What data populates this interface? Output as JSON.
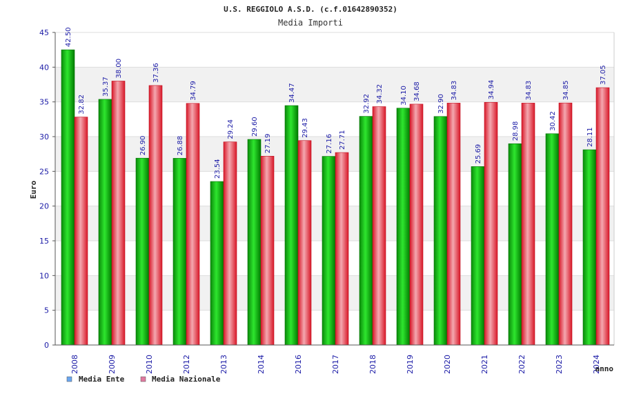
{
  "chart_data": {
    "type": "bar",
    "title": "U.S. REGGIOLO A.S.D. (c.f.01642890352)",
    "subtitle": "Media Importi",
    "xlabel": "anno",
    "ylabel": "Euro",
    "ylim": [
      0,
      45
    ],
    "yticks": [
      "0",
      "5",
      "10",
      "15",
      "20",
      "25",
      "30",
      "35",
      "40",
      "45"
    ],
    "grid": true,
    "legend_position": "bottom-left",
    "categories": [
      "2008",
      "2009",
      "2010",
      "2012",
      "2013",
      "2014",
      "2016",
      "2017",
      "2018",
      "2019",
      "2020",
      "2021",
      "2022",
      "2023",
      "2024"
    ],
    "series": [
      {
        "name": "Media Ente",
        "color": "#00b000",
        "legend_color": "#6aa6f0",
        "values": [
          42.5,
          35.37,
          26.9,
          26.88,
          23.54,
          29.6,
          34.47,
          27.16,
          32.92,
          34.1,
          32.9,
          25.69,
          28.98,
          30.42,
          28.11
        ],
        "labels": [
          "42.50",
          "35.37",
          "26.90",
          "26.88",
          "23.54",
          "29.60",
          "34.47",
          "27.16",
          "32.92",
          "34.10",
          "32.90",
          "25.69",
          "28.98",
          "30.42",
          "28.11"
        ]
      },
      {
        "name": "Media Nazionale",
        "color": "#e8202a",
        "legend_color": "#e07aa0",
        "values": [
          32.82,
          38.0,
          37.36,
          34.79,
          29.24,
          27.19,
          29.43,
          27.71,
          34.32,
          34.68,
          34.83,
          34.94,
          34.83,
          34.85,
          37.05
        ],
        "labels": [
          "32.82",
          "38.00",
          "37.36",
          "34.79",
          "29.24",
          "27.19",
          "29.43",
          "27.71",
          "34.32",
          "34.68",
          "34.83",
          "34.94",
          "34.83",
          "34.85",
          "37.05"
        ]
      }
    ]
  }
}
